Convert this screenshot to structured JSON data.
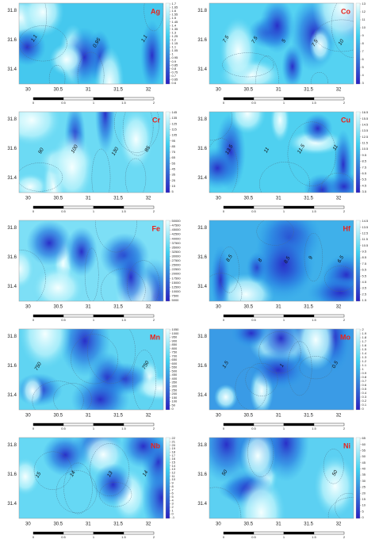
{
  "panels": [
    {
      "element": "Ag",
      "colorbar": [
        1.7,
        1.65,
        1.6,
        1.55,
        1.5,
        1.45,
        1.4,
        1.35,
        1.3,
        1.25,
        1.2,
        1.15,
        1.1,
        1.05,
        1,
        0.95,
        0.9,
        0.85,
        0.8,
        0.75,
        0.7,
        0.65,
        0.6
      ],
      "contour_labels": [
        "1.1",
        "0.95",
        "1.1"
      ],
      "x_ticks": [
        30,
        30.5,
        31,
        31.5,
        32
      ],
      "y_ticks": [
        31.8,
        31.6,
        31.4
      ],
      "scale": [
        0,
        0.5,
        1,
        1.5,
        2
      ]
    },
    {
      "element": "Co",
      "colorbar": [
        13,
        12,
        11,
        10,
        9,
        8,
        7,
        6,
        5,
        4,
        3
      ],
      "contour_labels": [
        "7.5",
        "7.5",
        "5",
        "7.5",
        "10"
      ],
      "x_ticks": [
        30,
        30.5,
        31,
        31.5,
        32
      ],
      "y_ticks": [
        31.8,
        31.6,
        31.4
      ],
      "scale": [
        0,
        0.5,
        1,
        1.5,
        2
      ]
    },
    {
      "element": "Cr",
      "colorbar": [
        145,
        135,
        125,
        115,
        105,
        95,
        85,
        75,
        65,
        55,
        45,
        35,
        25,
        15,
        5
      ],
      "contour_labels": [
        "90",
        "100",
        "130",
        "85"
      ],
      "x_ticks": [
        30,
        30.5,
        31,
        31.5,
        32
      ],
      "y_ticks": [
        31.8,
        31.6,
        31.4
      ],
      "scale": [
        0,
        0.5,
        1,
        1.5,
        2
      ]
    },
    {
      "element": "Cu",
      "colorbar": [
        16.5,
        15.5,
        14.5,
        13.5,
        12.5,
        11.5,
        10.5,
        9.5,
        8.5,
        7.5,
        6.5,
        5.5,
        4.5,
        3.5
      ],
      "contour_labels": [
        "13.5",
        "11",
        "11.5",
        "11"
      ],
      "x_ticks": [
        30,
        30.5,
        31,
        31.5,
        32
      ],
      "y_ticks": [
        31.8,
        31.6,
        31.4
      ],
      "scale": [
        0,
        0.5,
        1,
        1.5,
        2
      ]
    },
    {
      "element": "Fe",
      "colorbar": [
        50000,
        47500,
        45000,
        42500,
        40000,
        37500,
        35000,
        32500,
        30000,
        27500,
        25000,
        22500,
        20000,
        17500,
        15000,
        12500,
        10000,
        7500,
        5000
      ],
      "contour_labels": [],
      "x_ticks": [
        30,
        30.5,
        31,
        31.5,
        32
      ],
      "y_ticks": [
        31.8,
        31.6,
        31.4
      ],
      "scale": [
        0,
        0.5,
        1,
        1.5,
        2
      ]
    },
    {
      "element": "Hf",
      "colorbar": [
        14.5,
        13.5,
        12.5,
        11.5,
        10.5,
        9.5,
        8.5,
        7.5,
        6.5,
        5.5,
        4.5,
        3.5,
        2.5,
        1.5
      ],
      "contour_labels": [
        "8.5",
        "8",
        "8.5",
        "9",
        "6.5"
      ],
      "x_ticks": [
        30,
        30.5,
        31,
        31.5,
        32
      ],
      "y_ticks": [
        31.8,
        31.6,
        31.4
      ],
      "scale": [
        0,
        0.5,
        1,
        1.5,
        2
      ]
    },
    {
      "element": "Mn",
      "colorbar": [
        1050,
        1000,
        950,
        900,
        850,
        800,
        750,
        700,
        650,
        600,
        550,
        500,
        450,
        400,
        350,
        300,
        250,
        200,
        150,
        100,
        50,
        0
      ],
      "contour_labels": [
        "750",
        "750"
      ],
      "x_ticks": [
        30,
        30.5,
        31,
        31.5,
        32
      ],
      "y_ticks": [
        31.8,
        31.6,
        31.4
      ],
      "scale": [
        0,
        0.5,
        1,
        1.5,
        2
      ]
    },
    {
      "element": "Mo",
      "colorbar": [
        2,
        1.9,
        1.8,
        1.7,
        1.6,
        1.5,
        1.4,
        1.3,
        1.2,
        1.1,
        1,
        0.9,
        0.8,
        0.7,
        0.6,
        0.5,
        0.4,
        0.3,
        0.2,
        0.1,
        0
      ],
      "contour_labels": [
        "1.5",
        "1",
        "0.5"
      ],
      "x_ticks": [
        30,
        30.5,
        31,
        31.5,
        32
      ],
      "y_ticks": [
        31.8,
        31.6,
        31.4
      ],
      "scale": [
        0,
        0.5,
        1,
        1.5,
        2
      ]
    },
    {
      "element": "Nb",
      "colorbar": [
        22,
        21,
        20,
        19,
        18,
        17,
        16,
        15,
        14,
        13,
        12,
        11,
        10,
        9,
        8,
        7,
        6,
        5,
        4,
        3,
        2,
        1,
        0,
        -1
      ],
      "contour_labels": [
        "15",
        "14",
        "13",
        "14"
      ],
      "x_ticks": [
        30,
        30.5,
        31,
        31.5,
        32
      ],
      "y_ticks": [
        31.8,
        31.6,
        31.4
      ],
      "scale": [
        0,
        0.5,
        1,
        1.5,
        2
      ]
    },
    {
      "element": "Ni",
      "colorbar": [
        65,
        60,
        55,
        50,
        45,
        40,
        35,
        30,
        25,
        20,
        15,
        10,
        5,
        0
      ],
      "contour_labels": [
        "50",
        "50"
      ],
      "x_ticks": [
        30,
        30.5,
        31,
        31.5,
        32
      ],
      "y_ticks": [
        31.8,
        31.6,
        31.4
      ],
      "scale": [
        0,
        0.5,
        1,
        1.5,
        2
      ]
    }
  ]
}
